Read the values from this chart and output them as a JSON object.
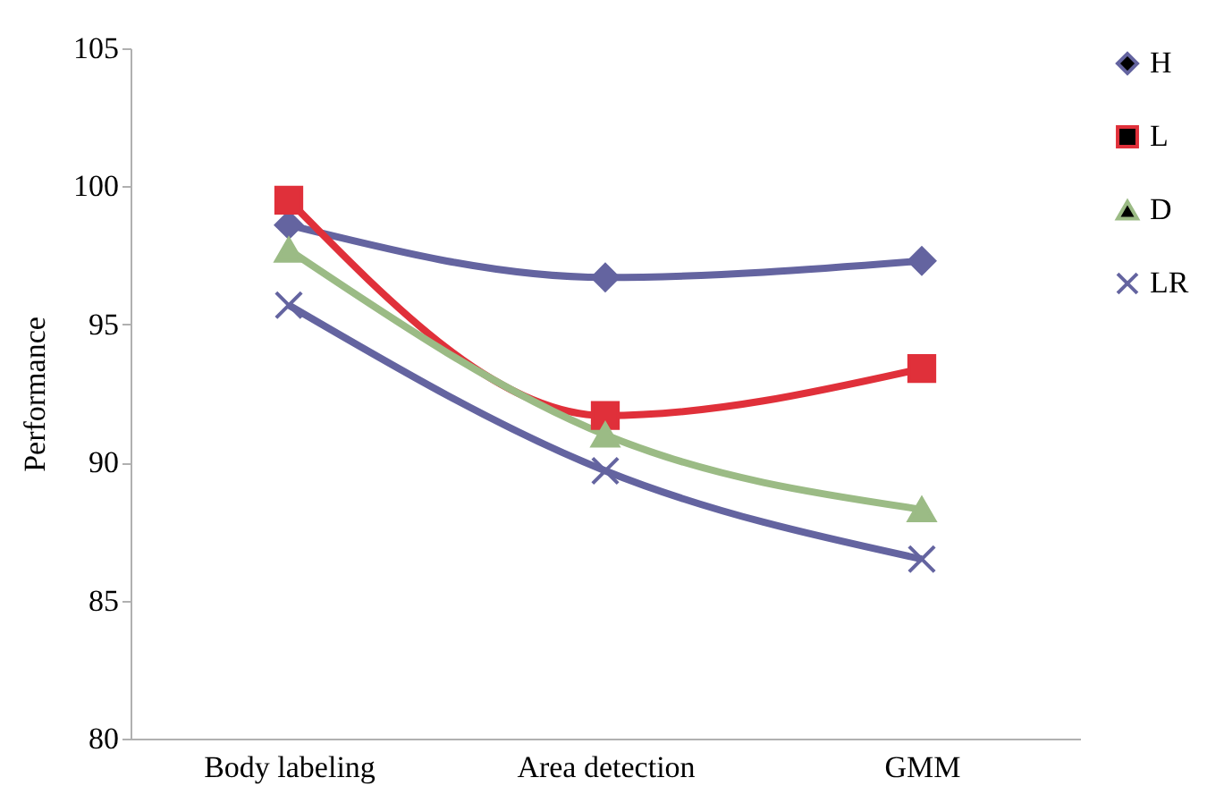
{
  "chart_data": {
    "type": "line",
    "ylabel": "Performance",
    "categories": [
      "Body labeling",
      "Area detection",
      "GMM"
    ],
    "series": [
      {
        "name": "H",
        "color": "#6464a0",
        "marker": "diamond",
        "values": [
          98.6,
          96.7,
          97.3
        ]
      },
      {
        "name": "L",
        "color": "#e0303a",
        "marker": "square",
        "values": [
          99.5,
          91.7,
          93.4
        ]
      },
      {
        "name": "D",
        "color": "#9bbb85",
        "marker": "triangle",
        "values": [
          97.7,
          91.0,
          88.3
        ]
      },
      {
        "name": "LR",
        "color": "#6464a0",
        "marker": "cross",
        "values": [
          95.7,
          89.7,
          86.5
        ]
      }
    ],
    "ylim": [
      80,
      105
    ],
    "yticks": [
      80,
      85,
      90,
      95,
      100,
      105
    ],
    "grid": false,
    "legend": "right"
  }
}
